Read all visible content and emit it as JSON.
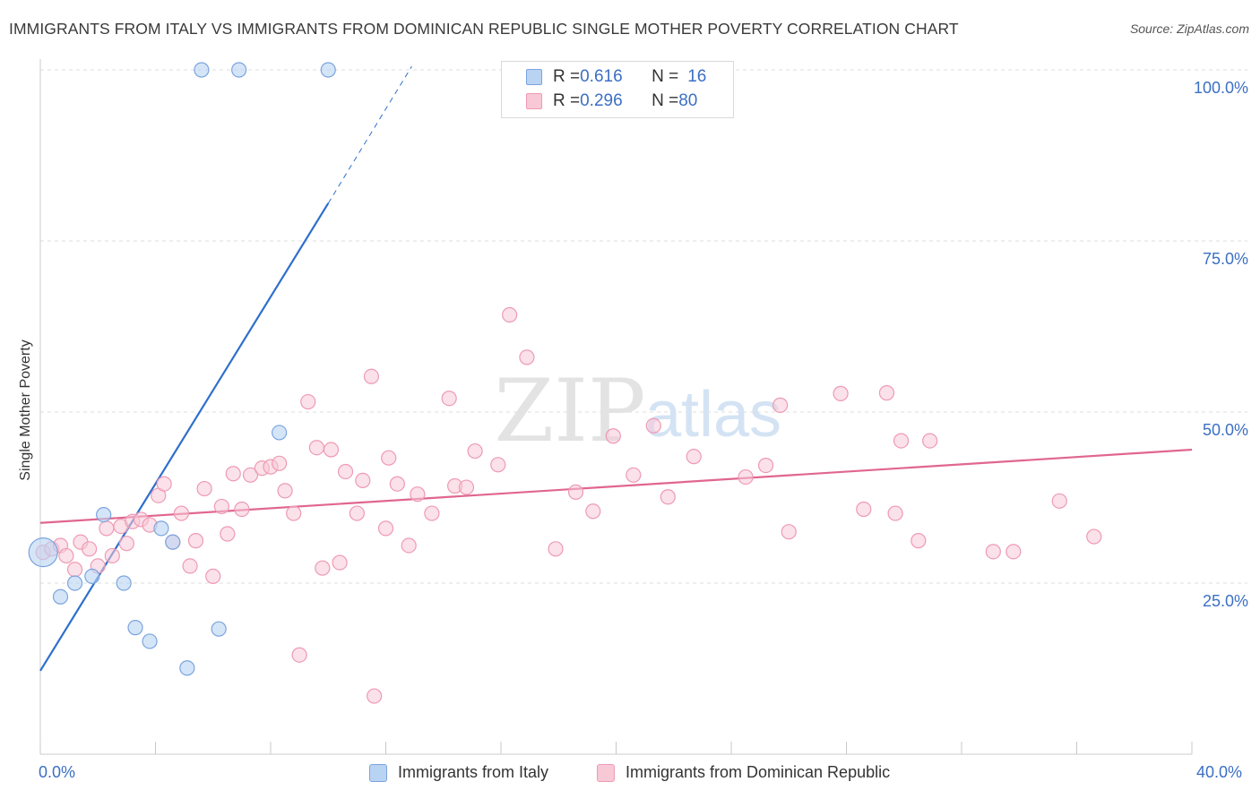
{
  "title": "IMMIGRANTS FROM ITALY VS IMMIGRANTS FROM DOMINICAN REPUBLIC SINGLE MOTHER POVERTY CORRELATION CHART",
  "source": "Source: ZipAtlas.com",
  "watermark": {
    "zip": "ZIP",
    "atlas": "atlas"
  },
  "legend": {
    "italy": {
      "r_label": "R = ",
      "r_value": "0.616",
      "n_label": "N = ",
      "n_value": "16"
    },
    "dominican": {
      "r_label": "R = ",
      "r_value": "0.296",
      "n_label": "N = ",
      "n_value": "80"
    }
  },
  "colors": {
    "italy_fill": "#b9d3f3",
    "italy_stroke": "#7ba4de",
    "italy_line": "#2e6fcc",
    "dominican_fill": "#f8c8d7",
    "dominican_stroke": "#ee9ab4",
    "dominican_line": "#e06690",
    "axis_label": "#3b6fc4",
    "grid": "#dddddd"
  },
  "chart_data": {
    "type": "scatter",
    "title": "IMMIGRANTS FROM ITALY VS IMMIGRANTS FROM DOMINICAN REPUBLIC SINGLE MOTHER POVERTY CORRELATION CHART",
    "xlabel": "",
    "ylabel": "Single Mother Poverty",
    "xlim": [
      0,
      40
    ],
    "ylim": [
      0,
      100
    ],
    "x_tick_labels": [
      "0.0%",
      "40.0%"
    ],
    "y_ticks": [
      25,
      50,
      75,
      100
    ],
    "y_tick_labels": [
      "25.0%",
      "50.0%",
      "75.0%",
      "100.0%"
    ],
    "series": [
      {
        "name": "Immigrants from Italy",
        "r": 0.616,
        "n": 16,
        "trend": {
          "x0": 0,
          "y0": 12.2,
          "x1": 10.0,
          "y1": 80.5,
          "dash_to_x": 12.9,
          "dash_to_y": 100.5
        },
        "points": [
          {
            "x": 0.1,
            "y": 29.5,
            "big": true
          },
          {
            "x": 0.7,
            "y": 23.0
          },
          {
            "x": 1.2,
            "y": 25.0
          },
          {
            "x": 1.8,
            "y": 26.0
          },
          {
            "x": 2.2,
            "y": 35.0
          },
          {
            "x": 2.9,
            "y": 25.0
          },
          {
            "x": 3.3,
            "y": 18.5
          },
          {
            "x": 3.8,
            "y": 16.5
          },
          {
            "x": 4.2,
            "y": 33.0
          },
          {
            "x": 4.6,
            "y": 31.0
          },
          {
            "x": 5.1,
            "y": 12.6
          },
          {
            "x": 6.2,
            "y": 18.3
          },
          {
            "x": 8.3,
            "y": 47.0
          },
          {
            "x": 5.6,
            "y": 100.0
          },
          {
            "x": 6.9,
            "y": 100.0
          },
          {
            "x": 10.0,
            "y": 100.0
          }
        ]
      },
      {
        "name": "Immigrants from Dominican Republic",
        "r": 0.296,
        "n": 80,
        "trend": {
          "x0": 0,
          "y0": 33.8,
          "x1": 40,
          "y1": 44.5
        },
        "points": [
          {
            "x": 0.1,
            "y": 29.5
          },
          {
            "x": 0.4,
            "y": 30.0
          },
          {
            "x": 0.7,
            "y": 30.5
          },
          {
            "x": 0.9,
            "y": 29.0
          },
          {
            "x": 1.2,
            "y": 27.0
          },
          {
            "x": 1.4,
            "y": 31.0
          },
          {
            "x": 1.7,
            "y": 30.0
          },
          {
            "x": 2.0,
            "y": 27.5
          },
          {
            "x": 2.3,
            "y": 33.0
          },
          {
            "x": 2.5,
            "y": 29.0
          },
          {
            "x": 2.8,
            "y": 33.3
          },
          {
            "x": 3.0,
            "y": 30.8
          },
          {
            "x": 3.2,
            "y": 34.0
          },
          {
            "x": 3.5,
            "y": 34.3
          },
          {
            "x": 3.8,
            "y": 33.5
          },
          {
            "x": 4.1,
            "y": 37.8
          },
          {
            "x": 4.3,
            "y": 39.5
          },
          {
            "x": 4.6,
            "y": 31.0
          },
          {
            "x": 4.9,
            "y": 35.2
          },
          {
            "x": 5.2,
            "y": 27.5
          },
          {
            "x": 5.4,
            "y": 31.2
          },
          {
            "x": 5.7,
            "y": 38.8
          },
          {
            "x": 6.0,
            "y": 26.0
          },
          {
            "x": 6.3,
            "y": 36.2
          },
          {
            "x": 6.5,
            "y": 32.2
          },
          {
            "x": 6.7,
            "y": 41.0
          },
          {
            "x": 7.0,
            "y": 35.8
          },
          {
            "x": 7.3,
            "y": 40.8
          },
          {
            "x": 7.7,
            "y": 41.8
          },
          {
            "x": 8.0,
            "y": 42.0
          },
          {
            "x": 8.3,
            "y": 42.5
          },
          {
            "x": 8.5,
            "y": 38.5
          },
          {
            "x": 8.8,
            "y": 35.2
          },
          {
            "x": 9.0,
            "y": 14.5
          },
          {
            "x": 9.3,
            "y": 51.5
          },
          {
            "x": 9.6,
            "y": 44.8
          },
          {
            "x": 9.8,
            "y": 27.2
          },
          {
            "x": 10.1,
            "y": 44.5
          },
          {
            "x": 10.4,
            "y": 28.0
          },
          {
            "x": 10.6,
            "y": 41.3
          },
          {
            "x": 11.0,
            "y": 35.2
          },
          {
            "x": 11.2,
            "y": 40.0
          },
          {
            "x": 11.5,
            "y": 55.2
          },
          {
            "x": 11.6,
            "y": 8.5
          },
          {
            "x": 12.0,
            "y": 33.0
          },
          {
            "x": 12.1,
            "y": 43.3
          },
          {
            "x": 12.4,
            "y": 39.5
          },
          {
            "x": 12.8,
            "y": 30.5
          },
          {
            "x": 13.1,
            "y": 38.0
          },
          {
            "x": 13.6,
            "y": 35.2
          },
          {
            "x": 14.2,
            "y": 52.0
          },
          {
            "x": 14.4,
            "y": 39.2
          },
          {
            "x": 14.8,
            "y": 39.0
          },
          {
            "x": 15.1,
            "y": 44.3
          },
          {
            "x": 15.9,
            "y": 42.3
          },
          {
            "x": 16.3,
            "y": 64.2
          },
          {
            "x": 16.9,
            "y": 58.0
          },
          {
            "x": 17.9,
            "y": 30.0
          },
          {
            "x": 18.6,
            "y": 38.3
          },
          {
            "x": 19.2,
            "y": 35.5
          },
          {
            "x": 19.9,
            "y": 46.5
          },
          {
            "x": 20.6,
            "y": 40.8
          },
          {
            "x": 21.3,
            "y": 48.0
          },
          {
            "x": 21.8,
            "y": 37.6
          },
          {
            "x": 22.7,
            "y": 43.5
          },
          {
            "x": 24.5,
            "y": 40.5
          },
          {
            "x": 25.2,
            "y": 42.2
          },
          {
            "x": 25.7,
            "y": 51.0
          },
          {
            "x": 26.0,
            "y": 32.5
          },
          {
            "x": 27.8,
            "y": 52.7
          },
          {
            "x": 28.6,
            "y": 35.8
          },
          {
            "x": 29.4,
            "y": 52.8
          },
          {
            "x": 29.7,
            "y": 35.2
          },
          {
            "x": 29.9,
            "y": 45.8
          },
          {
            "x": 30.5,
            "y": 31.2
          },
          {
            "x": 30.9,
            "y": 45.8
          },
          {
            "x": 33.1,
            "y": 29.6
          },
          {
            "x": 33.8,
            "y": 29.6
          },
          {
            "x": 35.4,
            "y": 37.0
          },
          {
            "x": 36.6,
            "y": 31.8
          }
        ]
      }
    ]
  }
}
